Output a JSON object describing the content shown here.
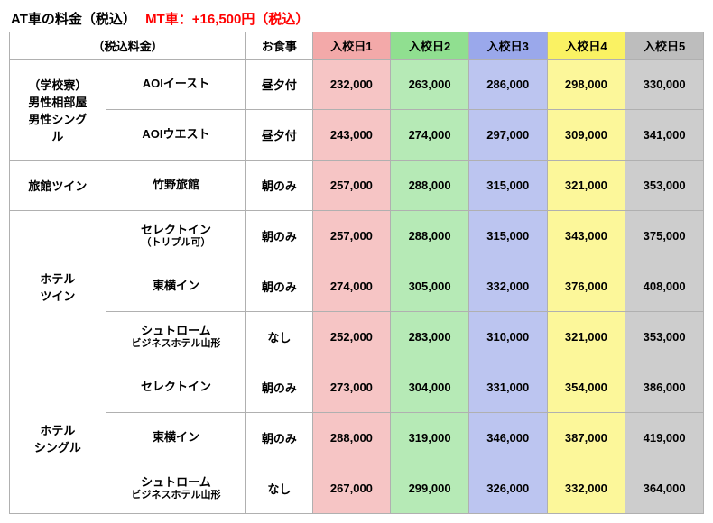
{
  "title_black": "AT車の料金（税込）",
  "title_red": "MT車：+16,500円（税込）",
  "headers": {
    "group": "（税込料金）",
    "meal": "お食事",
    "days": [
      "入校日1",
      "入校日2",
      "入校日3",
      "入校日4",
      "入校日5"
    ]
  },
  "day_colors": [
    "#f6c5c5",
    "#b6eab6",
    "#bcc5f0",
    "#fcf79a",
    "#cdcdcd"
  ],
  "header_day_colors": [
    "#f3a9a9",
    "#90df90",
    "#9aa8eb",
    "#faf263",
    "#bdbdbd"
  ],
  "rows": [
    {
      "category": "（学校寮）\n男性相部屋\n男性シング\nル",
      "category_rowspan": 2,
      "hotel": "AOIイースト",
      "meal": "昼夕付",
      "prices": [
        "232,000",
        "263,000",
        "286,000",
        "298,000",
        "330,000"
      ]
    },
    {
      "hotel": "AOIウエスト",
      "meal": "昼夕付",
      "prices": [
        "243,000",
        "274,000",
        "297,000",
        "309,000",
        "341,000"
      ]
    },
    {
      "category": "旅館ツイン",
      "category_rowspan": 1,
      "hotel": "竹野旅館",
      "meal": "朝のみ",
      "prices": [
        "257,000",
        "288,000",
        "315,000",
        "321,000",
        "353,000"
      ]
    },
    {
      "category": "ホテル\nツイン",
      "category_rowspan": 3,
      "hotel": "セレクトイン",
      "hotel_sub": "（トリプル可）",
      "meal": "朝のみ",
      "prices": [
        "257,000",
        "288,000",
        "315,000",
        "343,000",
        "375,000"
      ]
    },
    {
      "hotel": "東横イン",
      "meal": "朝のみ",
      "prices": [
        "274,000",
        "305,000",
        "332,000",
        "376,000",
        "408,000"
      ]
    },
    {
      "hotel": "シュトローム",
      "hotel_sub": "ビジネスホテル山形",
      "meal": "なし",
      "prices": [
        "252,000",
        "283,000",
        "310,000",
        "321,000",
        "353,000"
      ]
    },
    {
      "category": "ホテル\nシングル",
      "category_rowspan": 3,
      "hotel": "セレクトイン",
      "meal": "朝のみ",
      "prices": [
        "273,000",
        "304,000",
        "331,000",
        "354,000",
        "386,000"
      ]
    },
    {
      "hotel": "東横イン",
      "meal": "朝のみ",
      "prices": [
        "288,000",
        "319,000",
        "346,000",
        "387,000",
        "419,000"
      ]
    },
    {
      "hotel": "シュトローム",
      "hotel_sub": "ビジネスホテル山形",
      "meal": "なし",
      "prices": [
        "267,000",
        "299,000",
        "326,000",
        "332,000",
        "364,000"
      ]
    }
  ]
}
